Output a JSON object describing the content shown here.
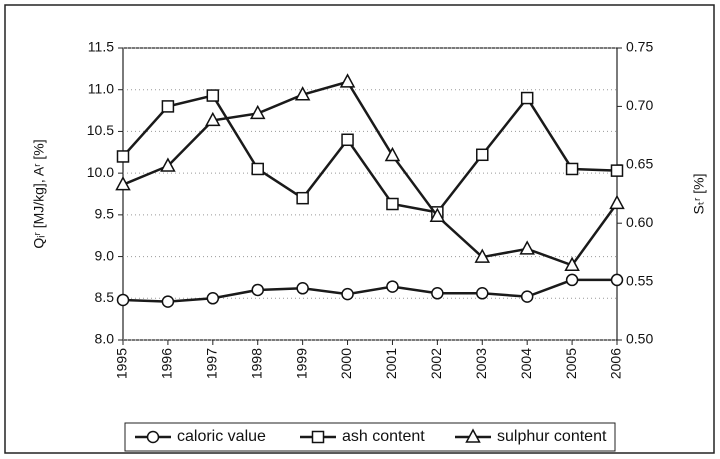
{
  "chart_data": {
    "type": "line",
    "categories": [
      "1995",
      "1996",
      "1997",
      "1998",
      "1999",
      "2000",
      "2001",
      "2002",
      "2003",
      "2004",
      "2005",
      "2006"
    ],
    "y_label": "Qᵢʳ [MJ/kg], Aʳ [%]",
    "y2_label": "Sₜʳ [%]",
    "ylim": [
      8.0,
      11.5
    ],
    "yticks": [
      {
        "value": 8.0,
        "label": "8.0"
      },
      8.5,
      {
        "value": 9.0,
        "label": "9.0"
      },
      9.5,
      {
        "value": 10.0,
        "label": "10.0"
      },
      10.5,
      {
        "value": 11.0,
        "label": "11.0"
      },
      11.5
    ],
    "y2lim": [
      0.5,
      0.75
    ],
    "y2ticks": [
      {
        "value": 0.5,
        "label": "0.50"
      },
      0.55,
      {
        "value": 0.6,
        "label": "0.60"
      },
      0.65,
      {
        "value": 0.7,
        "label": "0.70"
      },
      0.75
    ],
    "grid": true,
    "legend": "bottom",
    "series": [
      {
        "name": "caloric value",
        "color": "#1a1a1a",
        "marker": "circle",
        "values": [
          8.48,
          8.46,
          8.5,
          8.6,
          8.62,
          8.55,
          8.64,
          8.56,
          8.56,
          8.52,
          8.72,
          8.72
        ]
      },
      {
        "name": "ash content",
        "color": "#1a1a1a",
        "marker": "square",
        "values": [
          10.2,
          10.8,
          10.93,
          10.05,
          9.7,
          10.4,
          9.63,
          9.53,
          10.22,
          10.9,
          10.05,
          10.03
        ]
      },
      {
        "name": "sulphur content",
        "color": "#1a1a1a",
        "marker": "triangle",
        "axis": "y2",
        "values": [
          0.633,
          0.649,
          0.688,
          0.694,
          0.71,
          0.721,
          0.658,
          0.606,
          0.571,
          0.578,
          0.564,
          0.617
        ]
      }
    ]
  }
}
